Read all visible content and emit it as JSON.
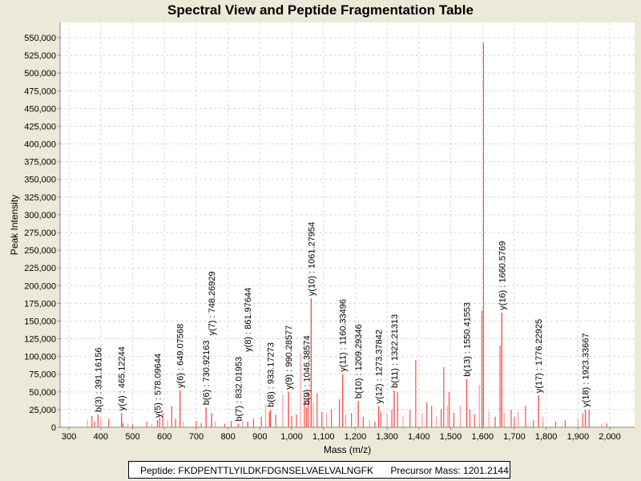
{
  "chart_data": {
    "type": "bar",
    "title": "Spectral View and Peptide Fragmentation Table",
    "xlabel": "Mass (m/z)",
    "ylabel": "Peak Intensity",
    "xlim": [
      272,
      2078
    ],
    "ylim": [
      0,
      571500
    ],
    "xticks": [
      300,
      400,
      500,
      600,
      700,
      800,
      900,
      1000,
      1100,
      1200,
      1300,
      1400,
      1500,
      1600,
      1700,
      1800,
      1900,
      2000
    ],
    "yticks": [
      0,
      25000,
      50000,
      75000,
      100000,
      125000,
      150000,
      175000,
      200000,
      225000,
      250000,
      275000,
      300000,
      325000,
      350000,
      375000,
      400000,
      425000,
      450000,
      475000,
      500000,
      525000,
      550000
    ],
    "grid": true,
    "annotated_peaks": [
      {
        "label": "b(3) : 391.16156",
        "mz": 391.16156,
        "intensity": 18000
      },
      {
        "label": "y(4) : 465.12244",
        "mz": 465.12244,
        "intensity": 20000
      },
      {
        "label": "y(5) : 578.09644",
        "mz": 578.09644,
        "intensity": 10000
      },
      {
        "label": "y(6) : 649.07568",
        "mz": 649.07568,
        "intensity": 52000
      },
      {
        "label": "b(6) : 730.92163",
        "mz": 730.92163,
        "intensity": 28000
      },
      {
        "label": "y(7) : 748.26929",
        "mz": 748.26929,
        "intensity": 20000
      },
      {
        "label": "b(7) : 832.01953",
        "mz": 832.01953,
        "intensity": 5000
      },
      {
        "label": "y(8) : 861.97644",
        "mz": 861.97644,
        "intensity": 8000
      },
      {
        "label": "b(8) : 933.17273",
        "mz": 933.17273,
        "intensity": 25000
      },
      {
        "label": "y(9) : 990.28577",
        "mz": 990.28577,
        "intensity": 50000
      },
      {
        "label": "b(9) : 1046.38574",
        "mz": 1046.38574,
        "intensity": 28000
      },
      {
        "label": "y(10) : 1061.27954",
        "mz": 1061.27954,
        "intensity": 182000
      },
      {
        "label": "y(11) : 1160.33496",
        "mz": 1160.33496,
        "intensity": 75000
      },
      {
        "label": "b(10) : 1209.29346",
        "mz": 1209.29346,
        "intensity": 37000
      },
      {
        "label": "y(12) : 1273.37842",
        "mz": 1273.37842,
        "intensity": 30000
      },
      {
        "label": "b(11) : 1322.21313",
        "mz": 1322.21313,
        "intensity": 52000
      },
      {
        "label": "b(13) : 1550.41553",
        "mz": 1550.41553,
        "intensity": 68000
      },
      {
        "label": "y(16) : 1660.5769",
        "mz": 1660.5769,
        "intensity": 162000
      },
      {
        "label": "y(17) : 1776.22925",
        "mz": 1776.22925,
        "intensity": 45000
      },
      {
        "label": "y(18) : 1923.33667",
        "mz": 1923.33667,
        "intensity": 25000
      }
    ],
    "other_peaks": [
      [
        358,
        10000
      ],
      [
        372,
        16000
      ],
      [
        380,
        8000
      ],
      [
        400,
        14000
      ],
      [
        425,
        12000
      ],
      [
        470,
        6000
      ],
      [
        485,
        5000
      ],
      [
        500,
        4000
      ],
      [
        545,
        8000
      ],
      [
        560,
        5000
      ],
      [
        585,
        14000
      ],
      [
        595,
        20000
      ],
      [
        610,
        10000
      ],
      [
        623,
        30000
      ],
      [
        635,
        12000
      ],
      [
        660,
        8000
      ],
      [
        700,
        9000
      ],
      [
        716,
        6000
      ],
      [
        760,
        8000
      ],
      [
        790,
        5000
      ],
      [
        810,
        9000
      ],
      [
        845,
        10000
      ],
      [
        880,
        12000
      ],
      [
        905,
        15000
      ],
      [
        918,
        32000
      ],
      [
        930,
        22000
      ],
      [
        950,
        18000
      ],
      [
        972,
        46000
      ],
      [
        1000,
        16000
      ],
      [
        1015,
        18000
      ],
      [
        1028,
        104000
      ],
      [
        1040,
        40000
      ],
      [
        1052,
        50000
      ],
      [
        1068,
        35000
      ],
      [
        1080,
        48000
      ],
      [
        1095,
        22000
      ],
      [
        1110,
        20000
      ],
      [
        1125,
        25000
      ],
      [
        1150,
        40000
      ],
      [
        1170,
        18000
      ],
      [
        1188,
        20000
      ],
      [
        1225,
        15000
      ],
      [
        1245,
        10000
      ],
      [
        1262,
        8000
      ],
      [
        1280,
        22000
      ],
      [
        1300,
        18000
      ],
      [
        1315,
        25000
      ],
      [
        1333,
        50000
      ],
      [
        1350,
        15000
      ],
      [
        1372,
        25000
      ],
      [
        1390,
        95000
      ],
      [
        1410,
        20000
      ],
      [
        1425,
        35000
      ],
      [
        1440,
        30000
      ],
      [
        1455,
        15000
      ],
      [
        1470,
        25000
      ],
      [
        1478,
        85000
      ],
      [
        1490,
        30000
      ],
      [
        1495,
        50000
      ],
      [
        1510,
        20000
      ],
      [
        1530,
        30000
      ],
      [
        1560,
        25000
      ],
      [
        1575,
        18000
      ],
      [
        1590,
        60000
      ],
      [
        1598,
        165000
      ],
      [
        1603,
        543000
      ],
      [
        1620,
        22000
      ],
      [
        1640,
        15000
      ],
      [
        1655,
        115000
      ],
      [
        1668,
        20000
      ],
      [
        1690,
        25000
      ],
      [
        1700,
        15000
      ],
      [
        1712,
        22000
      ],
      [
        1735,
        30000
      ],
      [
        1760,
        10000
      ],
      [
        1790,
        15000
      ],
      [
        1830,
        8000
      ],
      [
        1860,
        10000
      ],
      [
        1900,
        12000
      ],
      [
        1915,
        20000
      ],
      [
        1935,
        25000
      ],
      [
        1975,
        5000
      ],
      [
        1990,
        6000
      ]
    ]
  },
  "footer": {
    "peptide": "Peptide: FKDPENTTLYILDKFDGNSELVAELVALNGFK",
    "precursor": "Precursor Mass: 1201.2144"
  },
  "colors": {
    "peak": "#ff4d4d",
    "peak_light": "#ff9a9a",
    "grid": "#d8d8d8"
  }
}
